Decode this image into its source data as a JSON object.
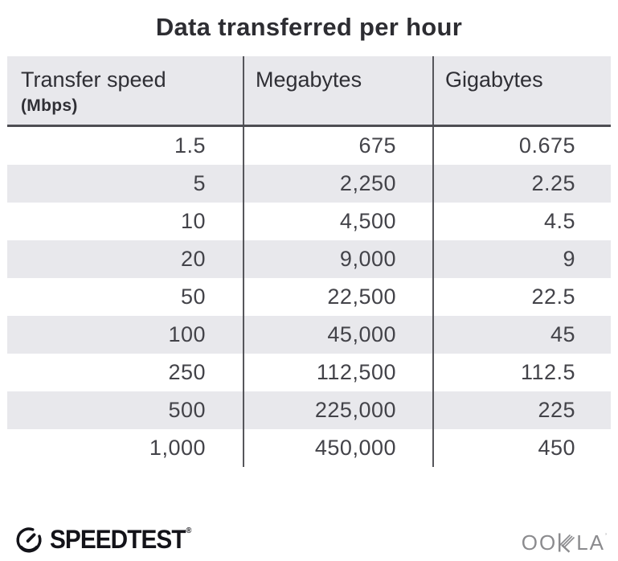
{
  "title": "Data transferred per hour",
  "table": {
    "columns": [
      {
        "label": "Transfer speed",
        "sublabel": "(Mbps)"
      },
      {
        "label": "Megabytes",
        "sublabel": ""
      },
      {
        "label": "Gigabytes",
        "sublabel": ""
      }
    ],
    "rows": [
      [
        "1.5",
        "675",
        "0.675"
      ],
      [
        "5",
        "2,250",
        "2.25"
      ],
      [
        "10",
        "4,500",
        "4.5"
      ],
      [
        "20",
        "9,000",
        "9"
      ],
      [
        "50",
        "22,500",
        "22.5"
      ],
      [
        "100",
        "45,000",
        "45"
      ],
      [
        "250",
        "112,500",
        "112.5"
      ],
      [
        "500",
        "225,000",
        "225"
      ],
      [
        "1,000",
        "450,000",
        "450"
      ]
    ]
  },
  "footer": {
    "speedtest_label": "SPEEDTEST",
    "speedtest_registered": "®",
    "ookla_prefix": "OO",
    "ookla_suffix": "LA",
    "ookla_trademark": "’"
  },
  "colors": {
    "header_background": "#e8e8ec",
    "stripe_background": "#e8e8ec",
    "divider_line": "#56565b",
    "header_underline": "#4e4e53",
    "title_text": "#2d2d32",
    "body_text": "#434349",
    "speedtest_logo": "#131319",
    "ookla_logo": "#8b8b8e"
  },
  "chart_data": {
    "type": "table",
    "title": "Data transferred per hour",
    "columns": [
      "Transfer speed (Mbps)",
      "Megabytes",
      "Gigabytes"
    ],
    "rows": [
      [
        1.5,
        675,
        0.675
      ],
      [
        5,
        2250,
        2.25
      ],
      [
        10,
        4500,
        4.5
      ],
      [
        20,
        9000,
        9
      ],
      [
        50,
        22500,
        22.5
      ],
      [
        100,
        45000,
        45
      ],
      [
        250,
        112500,
        112.5
      ],
      [
        500,
        225000,
        225
      ],
      [
        1000,
        450000,
        450
      ]
    ],
    "layout": {
      "striped_rows": "even rows shaded",
      "value_alignment": "right",
      "grid": "column dividers + header underline only"
    }
  }
}
